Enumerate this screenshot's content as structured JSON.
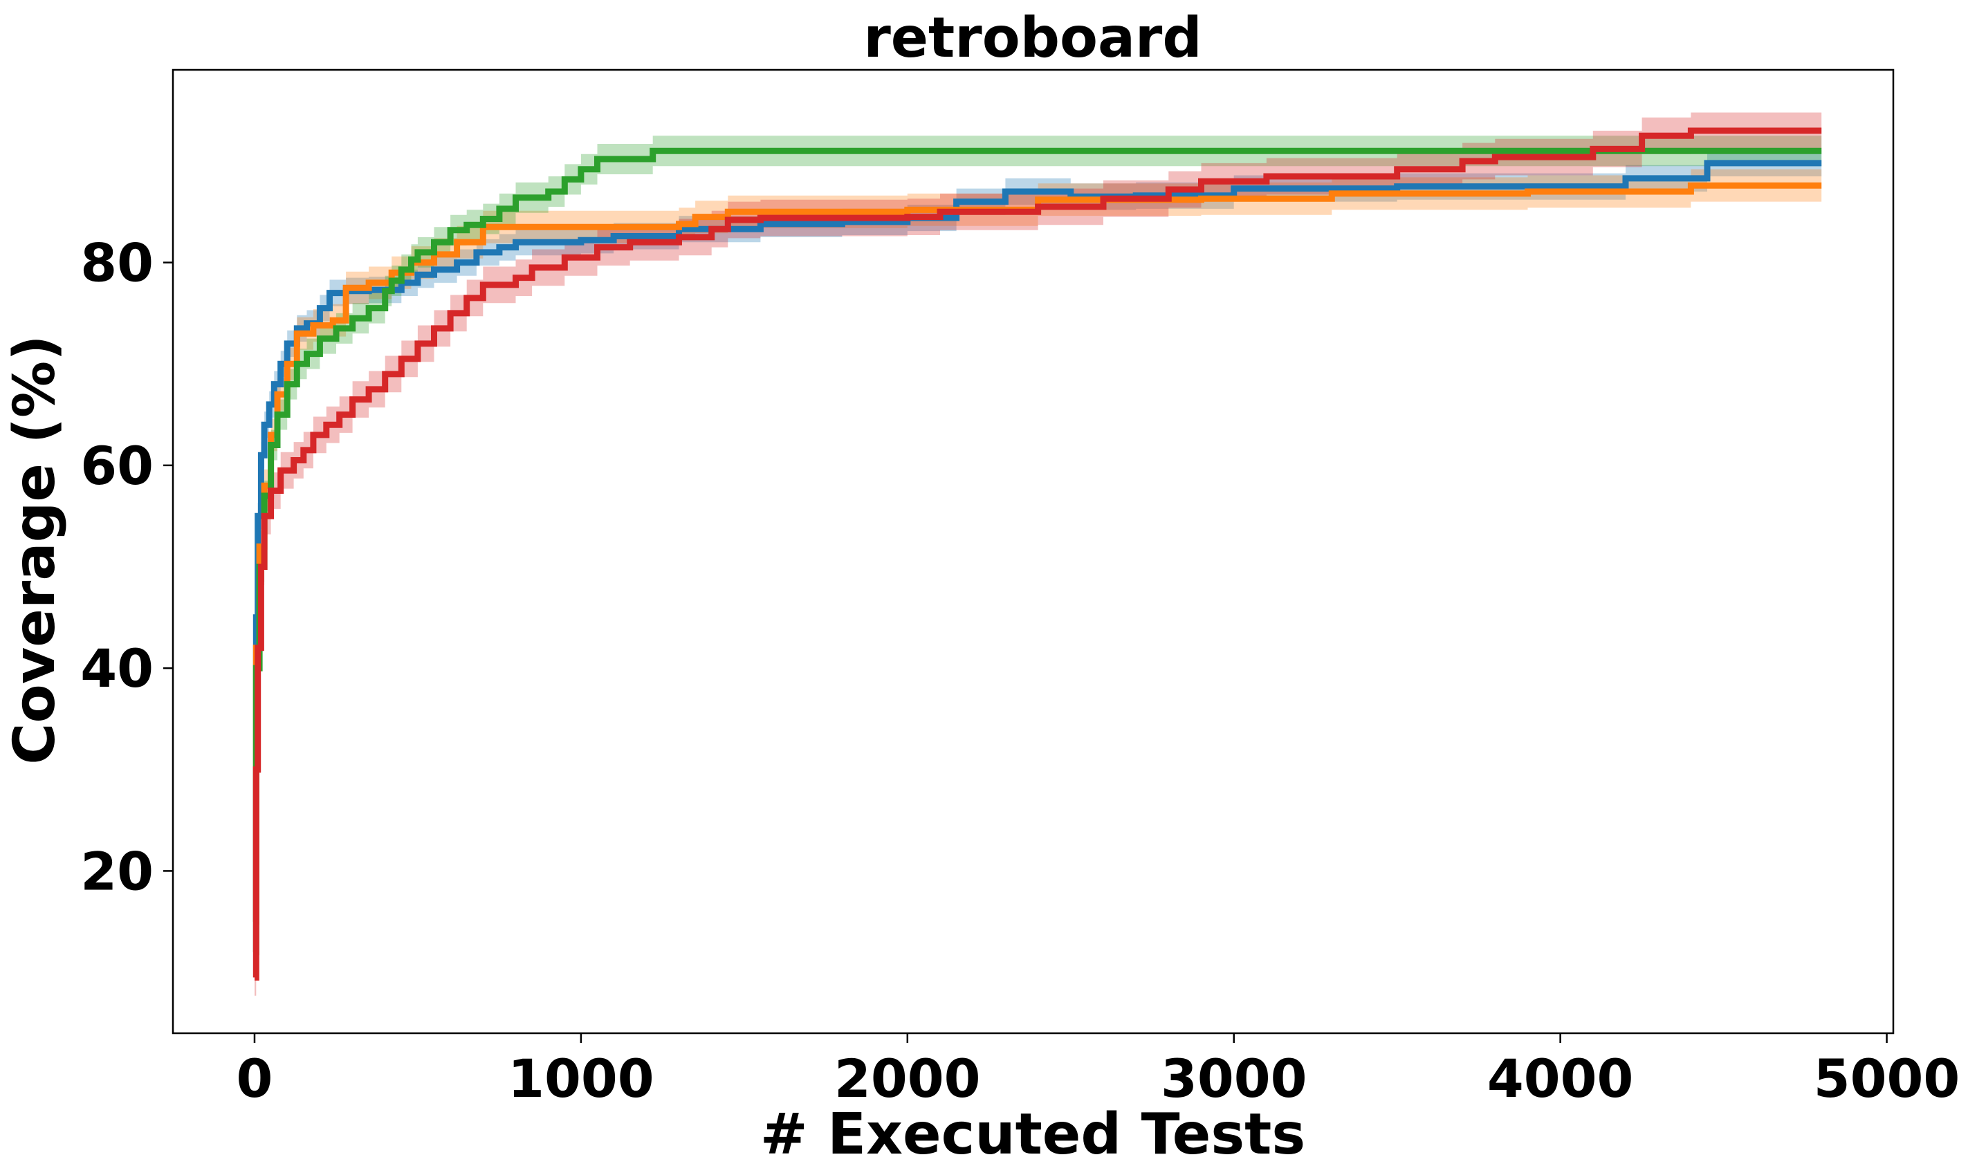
{
  "chart_data": {
    "type": "line",
    "title": "retroboard",
    "xlabel": "# Executed Tests",
    "ylabel": "Coverage (%)",
    "xlim": [
      -250,
      5020
    ],
    "ylim": [
      4,
      99
    ],
    "xticks": [
      0,
      1000,
      2000,
      3000,
      4000,
      5000
    ],
    "yticks": [
      20,
      40,
      60,
      80
    ],
    "grid": false,
    "legend": "none",
    "step": true,
    "series": [
      {
        "color": "#1f77b4",
        "band": 1.3,
        "points": [
          [
            0,
            15
          ],
          [
            5,
            45
          ],
          [
            10,
            55
          ],
          [
            20,
            61
          ],
          [
            30,
            64
          ],
          [
            45,
            66
          ],
          [
            60,
            68
          ],
          [
            80,
            70
          ],
          [
            100,
            72
          ],
          [
            130,
            73.5
          ],
          [
            160,
            74
          ],
          [
            200,
            75.5
          ],
          [
            230,
            77
          ],
          [
            280,
            77.2
          ],
          [
            350,
            77.3
          ],
          [
            450,
            78
          ],
          [
            500,
            78.8
          ],
          [
            550,
            79.3
          ],
          [
            620,
            80
          ],
          [
            680,
            81
          ],
          [
            750,
            81.5
          ],
          [
            800,
            82
          ],
          [
            1000,
            82.2
          ],
          [
            1100,
            82.6
          ],
          [
            1300,
            83.3
          ],
          [
            1550,
            83.8
          ],
          [
            1800,
            84
          ],
          [
            2000,
            84.4
          ],
          [
            2150,
            86
          ],
          [
            2300,
            87
          ],
          [
            2500,
            86.5
          ],
          [
            2700,
            86.6
          ],
          [
            3000,
            87.3
          ],
          [
            3500,
            87.5
          ],
          [
            4200,
            88.3
          ],
          [
            4450,
            89.8
          ],
          [
            4800,
            89.8
          ]
        ]
      },
      {
        "color": "#ff7f0e",
        "band": 1.6,
        "points": [
          [
            0,
            15
          ],
          [
            5,
            42
          ],
          [
            15,
            52
          ],
          [
            30,
            58
          ],
          [
            50,
            63
          ],
          [
            70,
            67
          ],
          [
            100,
            70
          ],
          [
            130,
            73
          ],
          [
            180,
            73.8
          ],
          [
            240,
            74.3
          ],
          [
            280,
            77.5
          ],
          [
            350,
            78
          ],
          [
            420,
            79
          ],
          [
            480,
            80
          ],
          [
            550,
            80.8
          ],
          [
            620,
            82
          ],
          [
            700,
            83.5
          ],
          [
            900,
            83.5
          ],
          [
            1000,
            83.5
          ],
          [
            1300,
            83.8
          ],
          [
            1350,
            84.5
          ],
          [
            1450,
            85
          ],
          [
            1600,
            85
          ],
          [
            2000,
            85.2
          ],
          [
            2100,
            85.2
          ],
          [
            2400,
            86.2
          ],
          [
            2900,
            86.3
          ],
          [
            3300,
            86.8
          ],
          [
            3900,
            87
          ],
          [
            4400,
            87.6
          ],
          [
            4800,
            87.6
          ]
        ]
      },
      {
        "color": "#2ca02c",
        "band": 1.5,
        "points": [
          [
            0,
            12
          ],
          [
            5,
            40
          ],
          [
            15,
            50
          ],
          [
            30,
            57
          ],
          [
            50,
            62
          ],
          [
            70,
            65
          ],
          [
            100,
            68
          ],
          [
            130,
            70
          ],
          [
            160,
            71
          ],
          [
            200,
            72.5
          ],
          [
            250,
            73.5
          ],
          [
            300,
            74.5
          ],
          [
            350,
            75.5
          ],
          [
            400,
            77.2
          ],
          [
            420,
            78.2
          ],
          [
            450,
            79.3
          ],
          [
            480,
            80.3
          ],
          [
            500,
            81
          ],
          [
            550,
            82
          ],
          [
            600,
            83.2
          ],
          [
            650,
            83.7
          ],
          [
            700,
            84.3
          ],
          [
            750,
            85.3
          ],
          [
            800,
            86.4
          ],
          [
            900,
            87
          ],
          [
            950,
            88.2
          ],
          [
            1000,
            89.2
          ],
          [
            1050,
            90.2
          ],
          [
            1200,
            90.2
          ],
          [
            1220,
            91
          ],
          [
            2000,
            91
          ],
          [
            4000,
            91
          ],
          [
            4800,
            91
          ]
        ]
      },
      {
        "color": "#d62728",
        "band": 1.8,
        "points": [
          [
            0,
            9.5
          ],
          [
            5,
            30
          ],
          [
            10,
            42
          ],
          [
            20,
            50
          ],
          [
            30,
            55
          ],
          [
            50,
            57.5
          ],
          [
            80,
            59.5
          ],
          [
            120,
            60.5
          ],
          [
            150,
            61.5
          ],
          [
            180,
            63
          ],
          [
            220,
            64
          ],
          [
            260,
            65
          ],
          [
            300,
            66.5
          ],
          [
            350,
            67.5
          ],
          [
            400,
            69
          ],
          [
            450,
            70.5
          ],
          [
            500,
            72
          ],
          [
            550,
            73.5
          ],
          [
            600,
            75
          ],
          [
            650,
            76.5
          ],
          [
            700,
            77.8
          ],
          [
            800,
            78.5
          ],
          [
            850,
            79.5
          ],
          [
            950,
            80.5
          ],
          [
            1050,
            81.5
          ],
          [
            1150,
            82
          ],
          [
            1300,
            82.5
          ],
          [
            1400,
            83.3
          ],
          [
            1450,
            84.2
          ],
          [
            1550,
            84.4
          ],
          [
            2000,
            84.5
          ],
          [
            2100,
            85
          ],
          [
            2400,
            85.5
          ],
          [
            2600,
            86.3
          ],
          [
            2800,
            87.2
          ],
          [
            2900,
            88
          ],
          [
            3100,
            88.5
          ],
          [
            3500,
            89.2
          ],
          [
            3700,
            90
          ],
          [
            3800,
            90.4
          ],
          [
            4100,
            91.2
          ],
          [
            4250,
            92.5
          ],
          [
            4400,
            93
          ],
          [
            4800,
            93
          ]
        ]
      }
    ]
  }
}
